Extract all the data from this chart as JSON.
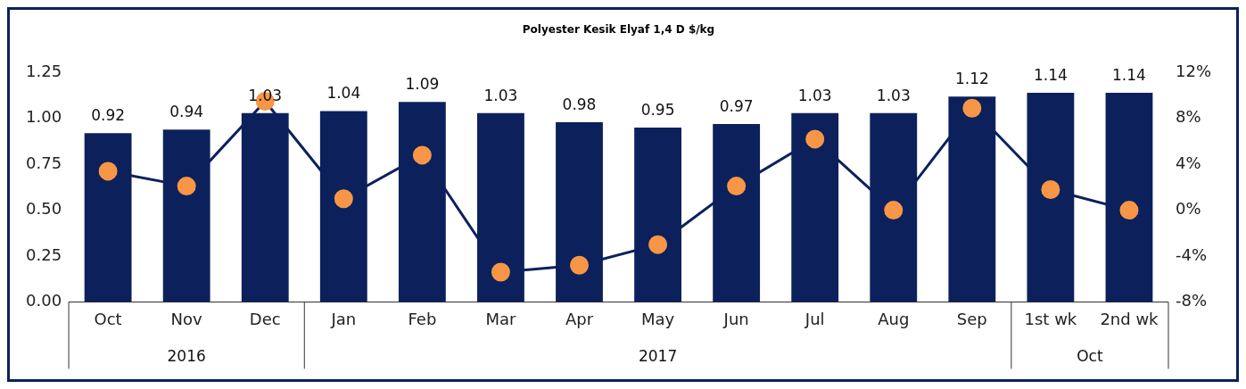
{
  "chart_data": {
    "type": "bar",
    "title": "Polyester Kesik Elyaf 1,4 D $/kg",
    "categories": [
      "Oct",
      "Nov",
      "Dec",
      "Jan",
      "Feb",
      "Mar",
      "Apr",
      "May",
      "Jun",
      "Jul",
      "Aug",
      "Sep",
      "1st wk",
      "2nd wk"
    ],
    "annotations": [
      "2016",
      "2017",
      "Oct"
    ],
    "series": [
      {
        "color": "#0c215c",
        "values": [
          0.92,
          0.94,
          1.03,
          1.04,
          1.09,
          1.03,
          0.98,
          0.95,
          0.97,
          1.03,
          1.03,
          1.12,
          1.14,
          1.14
        ],
        "value_labels": [
          "0.92",
          "0.94",
          "1.03",
          "1.04",
          "1.09",
          "1.03",
          "0.98",
          "0.95",
          "0.97",
          "1.03",
          "1.03",
          "1.12",
          "1.14",
          "1.14"
        ]
      },
      {
        "type": "line",
        "axis": "y2",
        "color": "#0c215c",
        "colors": [
          "#f79646",
          "#f79646",
          "#f79646",
          "#f79646",
          "#f79646",
          "#f79646",
          "#f79646",
          "#f79646",
          "#f79646",
          "#f79646",
          "#f79646",
          "#f79646",
          "#f79646",
          "#f79646"
        ],
        "values": [
          3.4,
          2.1,
          9.5,
          1.0,
          4.8,
          -5.4,
          -4.8,
          -3.0,
          2.1,
          6.2,
          0,
          8.9,
          1.8,
          0
        ]
      }
    ],
    "ylim": [
      0,
      1.25
    ],
    "yticks": [
      {
        "value": 0,
        "label": "0.00"
      },
      {
        "value": 0.25,
        "label": "0.25"
      },
      {
        "value": 0.5,
        "label": "0.50"
      },
      {
        "value": 0.75,
        "label": "0.75"
      },
      {
        "value": 1,
        "label": "1.00"
      },
      {
        "value": 1.25,
        "label": "1.25"
      }
    ],
    "y2lim": [
      -8,
      12
    ],
    "y2ticks": [
      {
        "value": -8,
        "label": "-8%"
      },
      {
        "value": -4,
        "label": "-4%"
      },
      {
        "value": 0,
        "label": "0%"
      },
      {
        "value": 4,
        "label": "4%"
      },
      {
        "value": 8,
        "label": "8%"
      },
      {
        "value": 12,
        "label": "12%"
      }
    ],
    "grid": false,
    "legend": false,
    "marker": "circle",
    "line_style": "solid"
  }
}
